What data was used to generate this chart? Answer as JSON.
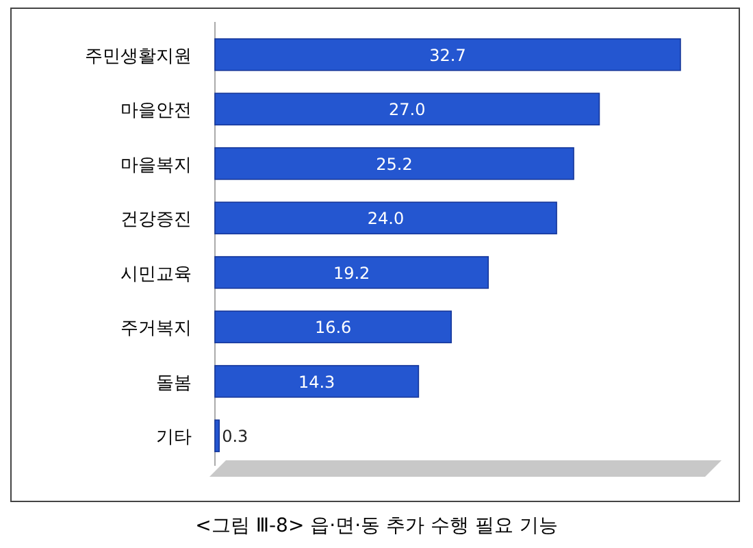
{
  "chart_data": {
    "type": "bar",
    "orientation": "horizontal",
    "categories": [
      "주민생활지원",
      "마을안전",
      "마을복지",
      "건강증진",
      "시민교육",
      "주거복지",
      "돌봄",
      "기타"
    ],
    "values": [
      32.7,
      27.0,
      25.2,
      24.0,
      19.2,
      16.6,
      14.3,
      0.3
    ],
    "value_labels": [
      "32.7",
      "27.0",
      "25.2",
      "24.0",
      "19.2",
      "16.6",
      "14.3",
      "0.3"
    ],
    "color": "#2456d0",
    "annotations": [
      "<그림 Ⅲ-8> 읍·면·동 추가 수행 필요 기능"
    ]
  }
}
